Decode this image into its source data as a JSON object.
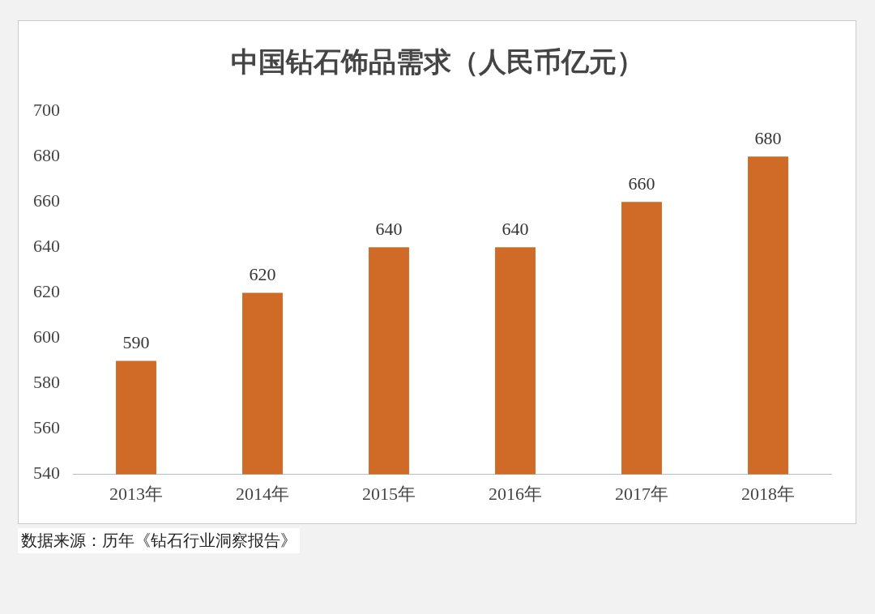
{
  "chart_data": {
    "type": "bar",
    "title": "中国钻石饰品需求（人民币亿元）",
    "categories": [
      "2013年",
      "2014年",
      "2015年",
      "2016年",
      "2017年",
      "2018年"
    ],
    "values": [
      590,
      620,
      640,
      640,
      660,
      680
    ],
    "color": "#d06b27",
    "ylim": [
      540,
      700
    ],
    "yticks": [
      540,
      560,
      580,
      600,
      620,
      640,
      660,
      680,
      700
    ],
    "grid": false,
    "data_labels": true,
    "annotations": [
      "数据来源：历年《钻石行业洞察报告》"
    ]
  }
}
